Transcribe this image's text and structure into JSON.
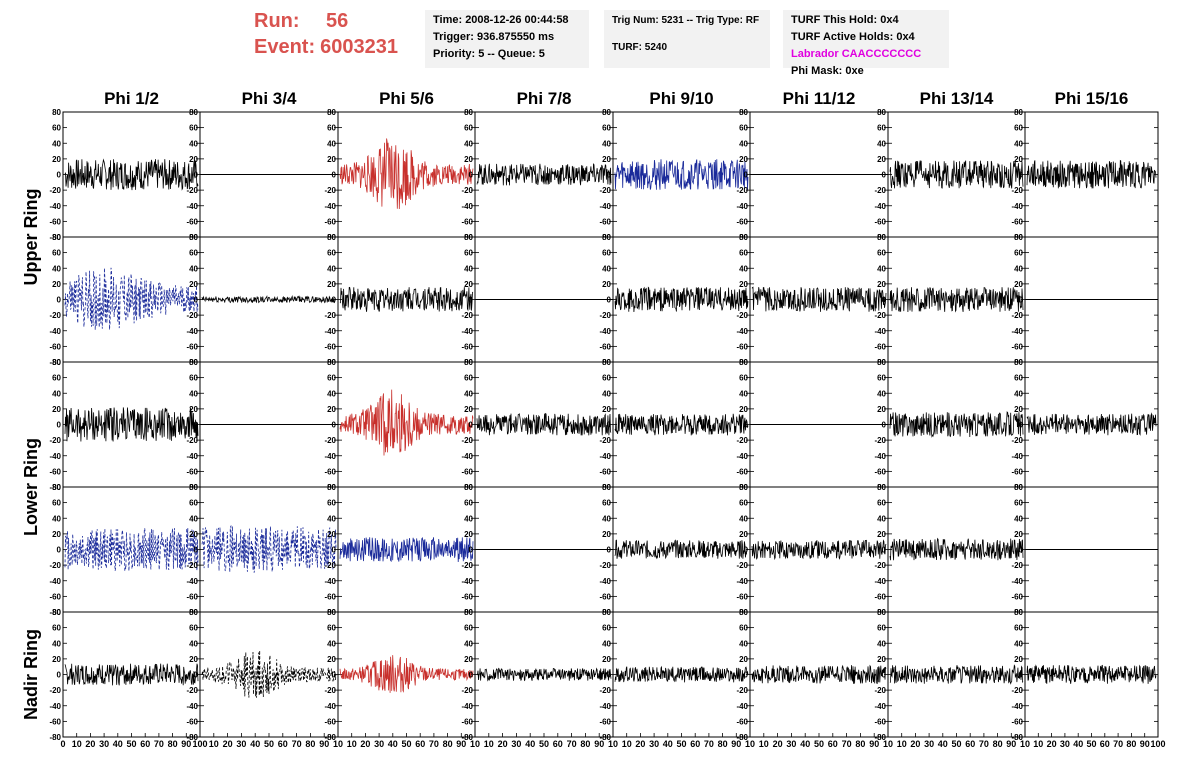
{
  "header": {
    "run_label": "Run:",
    "run_value": "56",
    "event_label": "Event:",
    "event_value": "6003231",
    "time": "Time: 2008-12-26 00:44:58",
    "trigger": "Trigger: 936.875550 ms",
    "priority": "Priority: 5 -- Queue: 5",
    "trig_num": "Trig Num: 5231 -- Trig Type: RF",
    "turf": "TURF: 5240",
    "turf_this_hold": "TURF This Hold: 0x4",
    "turf_active_holds": "TURF Active Holds: 0x4",
    "labrador": "Labrador CAACCCCCCC",
    "phi_mask": "Phi Mask: 0xe",
    "labrador_color": "#e000e0",
    "run_color": "#d9534f"
  },
  "chart_data": {
    "type": "line",
    "title": "",
    "columns": [
      "Phi 1/2",
      "Phi 3/4",
      "Phi 5/6",
      "Phi 7/8",
      "Phi 9/10",
      "Phi 11/12",
      "Phi 13/14",
      "Phi 15/16"
    ],
    "ring_labels": [
      "Upper Ring",
      "Lower Ring",
      "Nadir Ring"
    ],
    "rows": 5,
    "ylim": [
      -80,
      80
    ],
    "xlim": [
      0,
      100
    ],
    "y_ticks": [
      80,
      60,
      40,
      20,
      0,
      -20,
      -40,
      -60,
      -80
    ],
    "x_ticks": [
      0,
      10,
      20,
      30,
      40,
      50,
      60,
      70,
      80,
      90,
      100
    ],
    "first_panel_x_ticks": [
      "0",
      "10",
      "20",
      "30",
      "40",
      "50",
      "60",
      "70",
      "80",
      "90",
      "100"
    ],
    "panel_x_ticks": [
      "10",
      "20",
      "30",
      "40",
      "50",
      "60",
      "70",
      "80",
      "90",
      "10"
    ],
    "last_panel_x_ticks": [
      "10",
      "20",
      "30",
      "40",
      "50",
      "60",
      "70",
      "80",
      "90",
      "100"
    ],
    "colors": {
      "black": "#000000",
      "red": "#c8302c",
      "blue": "#1a2a9a"
    },
    "panels": [
      [
        {
          "color": "black",
          "style": "solid",
          "amp": 20,
          "env": "flat"
        },
        {
          "color": "black",
          "style": "flat",
          "amp": 0,
          "env": "flat"
        },
        {
          "color": "red",
          "style": "solid",
          "amp": 30,
          "env": "burst"
        },
        {
          "color": "black",
          "style": "solid",
          "amp": 14,
          "env": "flat"
        },
        {
          "color": "blue",
          "style": "solid",
          "amp": 20,
          "env": "flat"
        },
        {
          "color": "black",
          "style": "flat",
          "amp": 0,
          "env": "flat"
        },
        {
          "color": "black",
          "style": "solid",
          "amp": 18,
          "env": "flat"
        },
        {
          "color": "black",
          "style": "solid",
          "amp": 18,
          "env": "flat"
        }
      ],
      [
        {
          "color": "blue",
          "style": "dashed",
          "amp": 30,
          "env": "decay"
        },
        {
          "color": "black",
          "style": "solid",
          "amp": 4,
          "env": "flat"
        },
        {
          "color": "black",
          "style": "solid",
          "amp": 16,
          "env": "flat"
        },
        {
          "color": "black",
          "style": "flat",
          "amp": 0,
          "env": "flat"
        },
        {
          "color": "black",
          "style": "solid",
          "amp": 16,
          "env": "flat"
        },
        {
          "color": "black",
          "style": "solid",
          "amp": 16,
          "env": "flat"
        },
        {
          "color": "black",
          "style": "solid",
          "amp": 16,
          "env": "flat"
        },
        {
          "color": "black",
          "style": "flat",
          "amp": 0,
          "env": "flat"
        }
      ],
      [
        {
          "color": "black",
          "style": "solid",
          "amp": 22,
          "env": "flat"
        },
        {
          "color": "black",
          "style": "flat",
          "amp": 0,
          "env": "flat"
        },
        {
          "color": "red",
          "style": "solid",
          "amp": 28,
          "env": "burst"
        },
        {
          "color": "black",
          "style": "solid",
          "amp": 14,
          "env": "flat"
        },
        {
          "color": "black",
          "style": "solid",
          "amp": 14,
          "env": "flat"
        },
        {
          "color": "black",
          "style": "flat",
          "amp": 0,
          "env": "flat"
        },
        {
          "color": "black",
          "style": "solid",
          "amp": 16,
          "env": "flat"
        },
        {
          "color": "black",
          "style": "solid",
          "amp": 14,
          "env": "flat"
        }
      ],
      [
        {
          "color": "blue",
          "style": "dashed",
          "amp": 28,
          "env": "flat"
        },
        {
          "color": "blue",
          "style": "dashed",
          "amp": 30,
          "env": "flat"
        },
        {
          "color": "blue",
          "style": "solid",
          "amp": 16,
          "env": "flat"
        },
        {
          "color": "black",
          "style": "flat",
          "amp": 0,
          "env": "flat"
        },
        {
          "color": "black",
          "style": "solid",
          "amp": 12,
          "env": "flat"
        },
        {
          "color": "black",
          "style": "solid",
          "amp": 12,
          "env": "flat"
        },
        {
          "color": "black",
          "style": "solid",
          "amp": 14,
          "env": "flat"
        },
        {
          "color": "black",
          "style": "flat",
          "amp": 0,
          "env": "flat"
        }
      ],
      [
        {
          "color": "black",
          "style": "solid",
          "amp": 14,
          "env": "flat"
        },
        {
          "color": "black",
          "style": "dashed",
          "amp": 20,
          "env": "burst"
        },
        {
          "color": "red",
          "style": "solid",
          "amp": 16,
          "env": "burst"
        },
        {
          "color": "black",
          "style": "solid",
          "amp": 8,
          "env": "flat"
        },
        {
          "color": "black",
          "style": "solid",
          "amp": 10,
          "env": "flat"
        },
        {
          "color": "black",
          "style": "solid",
          "amp": 12,
          "env": "flat"
        },
        {
          "color": "black",
          "style": "solid",
          "amp": 12,
          "env": "flat"
        },
        {
          "color": "black",
          "style": "solid",
          "amp": 12,
          "env": "flat"
        }
      ]
    ]
  }
}
